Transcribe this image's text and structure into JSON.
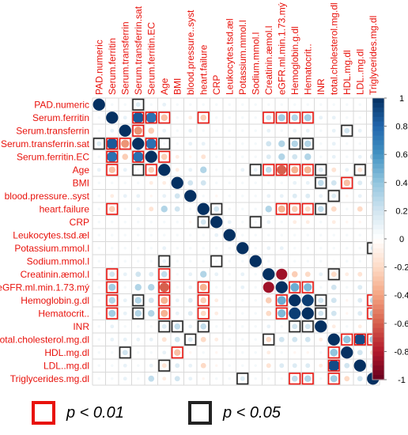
{
  "chart_data": {
    "type": "heatmap",
    "variables": [
      "PAD.numeric",
      "Serum.ferritin",
      "Serum.transferrin",
      "Serum.transferrin.sat",
      "Serum.ferritin.EC",
      "Age",
      "BMI",
      "blood.pressure..syst",
      "heart.failure",
      "CRP",
      "Leukocytes.tsd.æl",
      "Potassium.mmol.l",
      "Sodium.mmol.l",
      "Creatinin.æmol.l",
      "eGFR.ml.min.1.73.mý",
      "Hemoglobin.g.dl",
      "Hematocrit..",
      "INR",
      "total.cholesterol.mg.dl",
      "HDL.mg.dl",
      "LDL..mg.dl",
      "Triglycerides.mg.dl"
    ],
    "correlations": [
      [
        1,
        0.05,
        0.05,
        0.15,
        0.05,
        0.1,
        0.05,
        0.05,
        0.05,
        0.05,
        0.05,
        0.05,
        0.05,
        0.05,
        0.05,
        0.05,
        0.05,
        0.05,
        0.05,
        0.05,
        0.05,
        0.05
      ],
      [
        0.05,
        1,
        0.1,
        0.85,
        0.75,
        -0.3,
        0.05,
        -0.1,
        -0.25,
        0.05,
        0.05,
        0.05,
        0.05,
        0.2,
        0.35,
        0.3,
        0.35,
        0.1,
        0.1,
        0.05,
        0.05,
        0.05
      ],
      [
        0.05,
        0.1,
        1,
        -0.45,
        -0.25,
        0.1,
        0.05,
        0.1,
        0.05,
        0.05,
        0.05,
        0.05,
        0.05,
        0.1,
        0.05,
        0.1,
        0.1,
        0.05,
        0.1,
        0.2,
        0.1,
        0.1
      ],
      [
        0.15,
        0.85,
        -0.45,
        1,
        0.75,
        0.05,
        0.05,
        0.1,
        0.1,
        0.05,
        0.05,
        0.05,
        0.05,
        0.2,
        0.3,
        0.3,
        0.3,
        0.05,
        0.1,
        0.05,
        0.05,
        0.05
      ],
      [
        0.05,
        0.75,
        -0.25,
        0.75,
        1,
        -0.25,
        -0.1,
        -0.05,
        -0.15,
        0.05,
        0.05,
        0.05,
        0.05,
        0.15,
        0.3,
        0.2,
        0.3,
        0.05,
        0.1,
        0.05,
        0.1,
        0.25
      ],
      [
        0.1,
        -0.3,
        0.1,
        0.05,
        -0.25,
        1,
        -0.1,
        0.1,
        0.3,
        0.05,
        0.05,
        0.1,
        0.1,
        0.25,
        -0.6,
        -0.35,
        -0.35,
        0.15,
        -0.15,
        0.1,
        -0.15,
        -0.1
      ],
      [
        0.05,
        0.05,
        0.05,
        0.05,
        -0.1,
        -0.1,
        1,
        0.2,
        0.2,
        0.05,
        0.05,
        0.05,
        0.05,
        0.05,
        0.05,
        0.1,
        0.1,
        0.25,
        0.2,
        -0.3,
        0.15,
        0.2
      ],
      [
        0.05,
        -0.1,
        0.1,
        0.1,
        -0.05,
        0.1,
        0.2,
        1,
        0.05,
        -0.05,
        0.05,
        0.05,
        0.05,
        0.1,
        0.1,
        0.15,
        0.15,
        0.1,
        0.15,
        -0.05,
        0.1,
        0.1
      ],
      [
        0.05,
        -0.25,
        0.05,
        0.1,
        -0.15,
        0.3,
        0.2,
        0.05,
        1,
        0.2,
        0.05,
        0.05,
        0.05,
        0.3,
        -0.35,
        -0.25,
        -0.2,
        0.25,
        -0.2,
        0.05,
        -0.2,
        -0.05
      ],
      [
        0.05,
        0.05,
        0.05,
        0.05,
        0.05,
        0.05,
        0.05,
        -0.05,
        0.2,
        1,
        0.1,
        0.05,
        0.05,
        0.1,
        0.05,
        -0.1,
        -0.1,
        0.05,
        -0.1,
        -0.05,
        -0.05,
        0.05
      ],
      [
        0.05,
        0.05,
        0.05,
        0.05,
        0.05,
        0.05,
        0.05,
        0.05,
        0.05,
        0.1,
        1,
        0.05,
        0.05,
        0.05,
        0.05,
        0.05,
        0.05,
        0.05,
        0.05,
        0.05,
        0.05,
        0.05
      ],
      [
        0.05,
        0.05,
        0.05,
        0.05,
        0.05,
        0.1,
        0.05,
        0.05,
        0.05,
        0.05,
        0.05,
        1,
        0.05,
        0.1,
        0.1,
        0.05,
        0.05,
        0.05,
        0.05,
        0.05,
        0.05,
        0.15
      ],
      [
        0.05,
        0.05,
        0.05,
        0.05,
        0.05,
        0.1,
        0.05,
        0.05,
        0.05,
        0.05,
        0.05,
        0.05,
        1,
        0.05,
        0.05,
        0.05,
        0.05,
        0.05,
        0.05,
        0.05,
        0.05,
        0.05
      ],
      [
        0.05,
        0.2,
        0.1,
        0.2,
        0.15,
        0.25,
        0.05,
        0.1,
        0.3,
        0.1,
        0.05,
        0.1,
        0.05,
        1,
        -0.85,
        -0.25,
        -0.2,
        0.1,
        -0.2,
        -0.1,
        -0.15,
        0.05
      ],
      [
        0.05,
        0.35,
        0.05,
        0.3,
        0.3,
        -0.6,
        0.05,
        0.1,
        -0.35,
        0.05,
        0.05,
        0.1,
        0.05,
        -0.85,
        1,
        0.5,
        0.45,
        0.05,
        0.2,
        0.05,
        0.15,
        0.05
      ],
      [
        0.05,
        0.3,
        0.1,
        0.3,
        0.2,
        -0.35,
        0.1,
        0.15,
        -0.25,
        -0.1,
        0.05,
        0.05,
        0.05,
        -0.25,
        0.5,
        1,
        0.95,
        0.2,
        0.2,
        -0.05,
        0.15,
        0.25
      ],
      [
        0.05,
        0.35,
        0.1,
        0.3,
        0.3,
        -0.35,
        0.1,
        0.15,
        -0.2,
        -0.1,
        0.05,
        0.05,
        0.05,
        -0.2,
        0.45,
        0.95,
        1,
        0.2,
        0.2,
        -0.05,
        0.15,
        0.3
      ],
      [
        0.05,
        0.1,
        0.05,
        0.05,
        0.05,
        0.15,
        0.25,
        0.1,
        0.25,
        0.05,
        0.05,
        0.05,
        0.05,
        0.1,
        0.05,
        0.2,
        0.2,
        1,
        -0.1,
        0.05,
        -0.1,
        0.05
      ],
      [
        0.05,
        0.1,
        0.1,
        0.1,
        0.1,
        -0.15,
        0.2,
        0.15,
        -0.2,
        -0.1,
        0.05,
        0.05,
        0.05,
        -0.2,
        0.2,
        0.2,
        0.2,
        -0.1,
        1,
        0.4,
        0.9,
        0.35
      ],
      [
        0.05,
        0.05,
        0.2,
        0.05,
        0.05,
        0.1,
        -0.3,
        -0.05,
        0.05,
        -0.05,
        0.05,
        0.05,
        0.05,
        -0.1,
        0.05,
        -0.05,
        -0.05,
        0.05,
        0.4,
        1,
        0.2,
        -0.2
      ],
      [
        0.05,
        0.05,
        0.1,
        0.05,
        0.1,
        -0.15,
        0.15,
        0.1,
        -0.2,
        -0.05,
        0.05,
        0.05,
        0.05,
        -0.15,
        0.15,
        0.15,
        0.15,
        -0.1,
        0.9,
        0.2,
        1,
        0.2
      ],
      [
        0.05,
        0.05,
        0.1,
        0.05,
        0.25,
        -0.1,
        0.2,
        0.1,
        -0.05,
        0.05,
        0.05,
        0.15,
        0.05,
        0.05,
        0.05,
        0.25,
        0.3,
        0.05,
        0.35,
        -0.2,
        0.2,
        1
      ]
    ],
    "significance_pairs_p001": [
      [
        1,
        3
      ],
      [
        1,
        4
      ],
      [
        1,
        5
      ],
      [
        1,
        8
      ],
      [
        1,
        13
      ],
      [
        1,
        14
      ],
      [
        1,
        15
      ],
      [
        1,
        16
      ],
      [
        2,
        3
      ],
      [
        3,
        4
      ],
      [
        4,
        5
      ],
      [
        5,
        13
      ],
      [
        5,
        14
      ],
      [
        5,
        15
      ],
      [
        5,
        16
      ],
      [
        6,
        19
      ],
      [
        8,
        14
      ],
      [
        8,
        15
      ],
      [
        8,
        16
      ],
      [
        14,
        15
      ],
      [
        14,
        16
      ],
      [
        15,
        21
      ],
      [
        16,
        21
      ],
      [
        18,
        19
      ],
      [
        18,
        20
      ],
      [
        18,
        21
      ]
    ],
    "significance_pairs_p005": [
      [
        0,
        3
      ],
      [
        2,
        19
      ],
      [
        3,
        5
      ],
      [
        3,
        15
      ],
      [
        3,
        16
      ],
      [
        5,
        12
      ],
      [
        5,
        17
      ],
      [
        5,
        20
      ],
      [
        6,
        17
      ],
      [
        7,
        18
      ],
      [
        8,
        9
      ],
      [
        8,
        17
      ],
      [
        11,
        21
      ],
      [
        13,
        18
      ],
      [
        15,
        17
      ],
      [
        16,
        17
      ],
      [
        12,
        9
      ]
    ],
    "colorbar": {
      "ticks": [
        "1",
        "0.8",
        "0.6",
        "0.4",
        "0.2",
        "0",
        "-0.2",
        "-0.4",
        "-0.6",
        "-0.8",
        "-1"
      ],
      "colors": [
        "#67001f",
        "#b2182b",
        "#d6604d",
        "#f4a582",
        "#fddbc7",
        "#ffffff",
        "#d1e5f0",
        "#92c5de",
        "#4393c3",
        "#2166ac",
        "#053061"
      ]
    },
    "xlabel": "",
    "ylabel": ""
  },
  "legend": {
    "p001_label": "p < 0.01",
    "p005_label": "p < 0.05",
    "p001_color": "#e8120c",
    "p005_color": "#222222"
  }
}
